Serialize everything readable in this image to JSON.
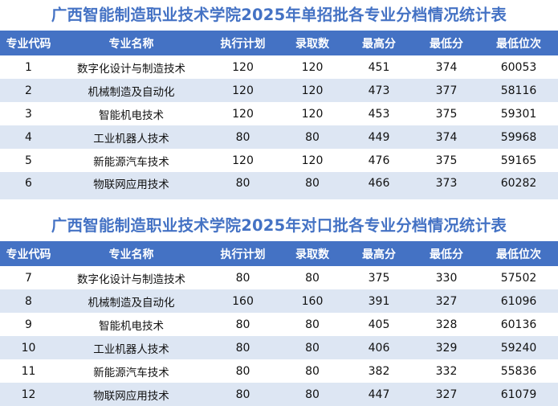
{
  "headers": [
    "专业代码",
    "专业名称",
    "执行计划",
    "录取数",
    "最高分",
    "最低分",
    "最低位次"
  ],
  "tables": [
    {
      "title": "广西智能制造职业技术学院2025年单招批各专业分档情况统计表",
      "rows": [
        [
          "1",
          "数字化设计与制造技术",
          "120",
          "120",
          "451",
          "374",
          "60053"
        ],
        [
          "2",
          "机械制造及自动化",
          "120",
          "120",
          "473",
          "377",
          "58116"
        ],
        [
          "3",
          "智能机电技术",
          "120",
          "120",
          "453",
          "375",
          "59301"
        ],
        [
          "4",
          "工业机器人技术",
          "80",
          "80",
          "449",
          "374",
          "59968"
        ],
        [
          "5",
          "新能源汽车技术",
          "120",
          "120",
          "476",
          "375",
          "59165"
        ],
        [
          "6",
          "物联网应用技术",
          "80",
          "80",
          "466",
          "373",
          "60282"
        ]
      ]
    },
    {
      "title": "广西智能制造职业技术学院2025年对口批各专业分档情况统计表",
      "rows": [
        [
          "7",
          "数字化设计与制造技术",
          "80",
          "80",
          "375",
          "330",
          "57502"
        ],
        [
          "8",
          "机械制造及自动化",
          "160",
          "160",
          "391",
          "327",
          "61096"
        ],
        [
          "9",
          "智能机电技术",
          "80",
          "80",
          "405",
          "328",
          "60136"
        ],
        [
          "10",
          "工业机器人技术",
          "80",
          "80",
          "406",
          "329",
          "59240"
        ],
        [
          "11",
          "新能源汽车技术",
          "80",
          "80",
          "382",
          "332",
          "55836"
        ],
        [
          "12",
          "物联网应用技术",
          "80",
          "80",
          "447",
          "327",
          "61079"
        ]
      ]
    }
  ],
  "colors": {
    "header_bg": "#4472c4",
    "title_text": "#4472c4",
    "stripe": "#dde6f3"
  }
}
